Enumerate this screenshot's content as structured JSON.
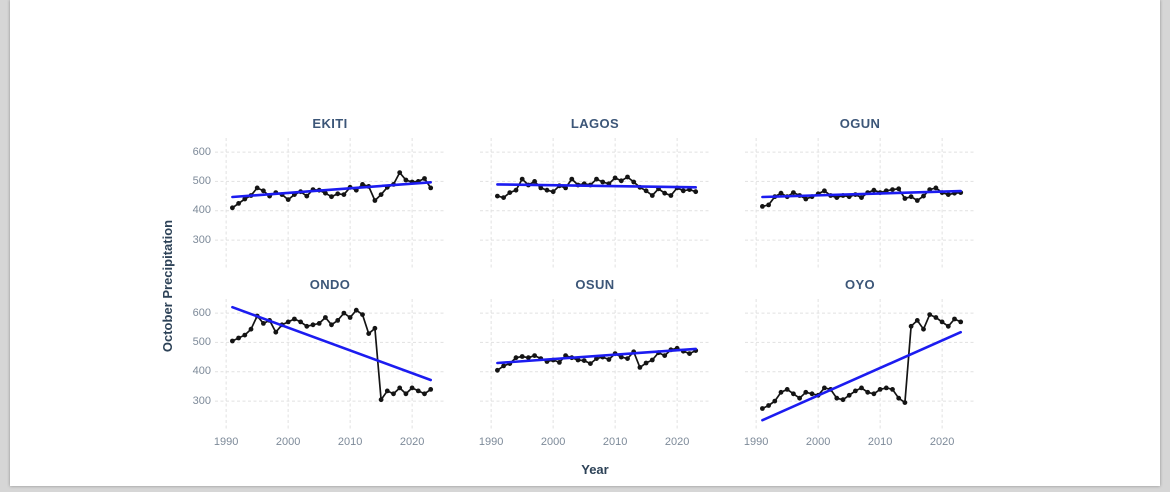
{
  "page": {
    "background_color": "#d6d6d6",
    "canvas_color": "#ffffff"
  },
  "chart_data": {
    "type": "line",
    "layout": "facet-grid-2x3",
    "xlabel": "Year",
    "ylabel": "October Precipitation",
    "grid": "dashed",
    "legend": "none",
    "x_ticks": [
      1990,
      2000,
      2010,
      2020
    ],
    "y_ticks": [
      300,
      400,
      500,
      600
    ],
    "x_range": [
      1988.2,
      2025.3
    ],
    "y_range": [
      205,
      648
    ],
    "years": [
      1991,
      1992,
      1993,
      1994,
      1995,
      1996,
      1997,
      1998,
      1999,
      2000,
      2001,
      2002,
      2003,
      2004,
      2005,
      2006,
      2007,
      2008,
      2009,
      2010,
      2011,
      2012,
      2013,
      2014,
      2015,
      2016,
      2017,
      2018,
      2019,
      2020,
      2021,
      2022,
      2023
    ],
    "colors": {
      "points": "#141414",
      "series_line": "#141414",
      "trend_line": "#1c1cf0",
      "grid_line": "#e1e1e1",
      "facet_title": "#3c5678",
      "axis_title": "#2d4257",
      "tick_label": "#7d8a99"
    },
    "facets": [
      {
        "label": "EKITI",
        "values": [
          410,
          425,
          440,
          452,
          478,
          468,
          450,
          462,
          455,
          438,
          455,
          465,
          450,
          472,
          470,
          460,
          448,
          458,
          455,
          480,
          470,
          490,
          483,
          435,
          455,
          480,
          490,
          530,
          505,
          498,
          500,
          510,
          478
        ],
        "trend": {
          "start": 447,
          "end": 497
        }
      },
      {
        "label": "LAGOS",
        "values": [
          450,
          445,
          462,
          470,
          508,
          488,
          500,
          478,
          470,
          465,
          485,
          478,
          508,
          488,
          492,
          488,
          508,
          498,
          492,
          512,
          502,
          515,
          498,
          480,
          468,
          452,
          475,
          460,
          452,
          478,
          468,
          472,
          465
        ],
        "trend": {
          "start": 490,
          "end": 480
        }
      },
      {
        "label": "OGUN",
        "values": [
          415,
          420,
          448,
          460,
          448,
          462,
          452,
          440,
          448,
          458,
          468,
          452,
          445,
          452,
          448,
          455,
          445,
          462,
          470,
          462,
          468,
          472,
          475,
          442,
          448,
          435,
          450,
          472,
          478,
          462,
          455,
          460,
          462
        ],
        "trend": {
          "start": 447,
          "end": 467
        }
      },
      {
        "label": "ONDO",
        "values": [
          505,
          515,
          525,
          545,
          590,
          565,
          575,
          535,
          560,
          570,
          580,
          570,
          555,
          560,
          565,
          585,
          560,
          575,
          600,
          585,
          610,
          595,
          530,
          548,
          305,
          335,
          325,
          345,
          325,
          345,
          335,
          325,
          340
        ],
        "trend": {
          "start": 620,
          "end": 372
        }
      },
      {
        "label": "OSUN",
        "values": [
          405,
          420,
          428,
          448,
          452,
          448,
          455,
          445,
          435,
          440,
          432,
          455,
          448,
          440,
          438,
          428,
          445,
          450,
          442,
          462,
          450,
          445,
          468,
          415,
          430,
          440,
          465,
          455,
          475,
          480,
          470,
          462,
          472
        ],
        "trend": {
          "start": 430,
          "end": 478
        }
      },
      {
        "label": "OYO",
        "values": [
          275,
          285,
          300,
          330,
          340,
          325,
          310,
          330,
          325,
          320,
          345,
          340,
          310,
          305,
          320,
          335,
          345,
          330,
          325,
          340,
          345,
          340,
          310,
          295,
          555,
          575,
          545,
          595,
          585,
          570,
          555,
          580,
          570
        ],
        "trend": {
          "start": 235,
          "end": 535
        }
      }
    ]
  }
}
